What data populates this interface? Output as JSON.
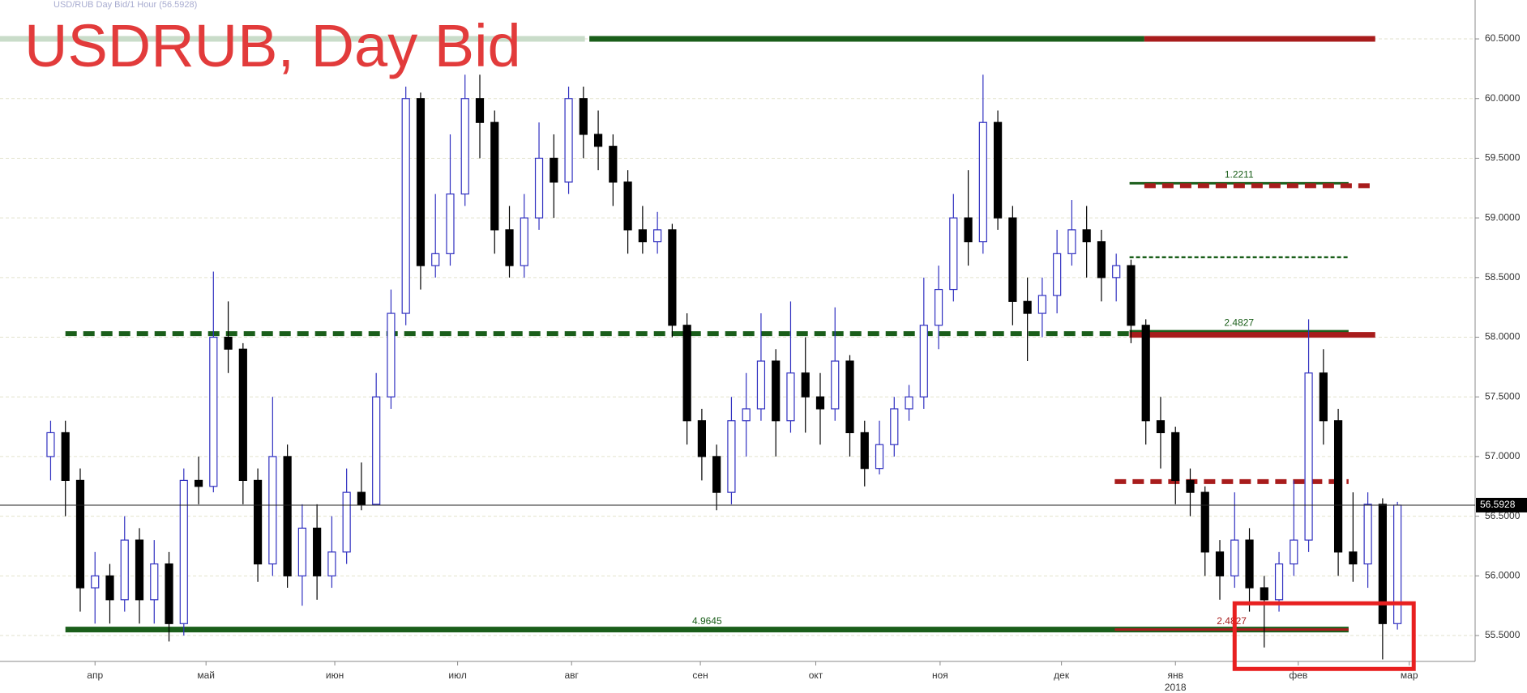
{
  "chart_data": {
    "type": "candlestick",
    "title": "USDRUB, Day Bid",
    "subtitle": "USD/RUB Day Bid/1 Hour (56.5928)",
    "up_color": "#3030c0",
    "down_color": "#000000",
    "xlim": [
      -3.42,
      96.25
    ],
    "ylim": [
      55.283,
      60.826
    ],
    "grid": true,
    "yticks": [
      {
        "value": 55.5,
        "label": "55.5000"
      },
      {
        "value": 56,
        "label": "56.0000"
      },
      {
        "value": 56.5,
        "label": "56.5000"
      },
      {
        "value": 57,
        "label": "57.0000"
      },
      {
        "value": 57.5,
        "label": "57.5000"
      },
      {
        "value": 58,
        "label": "58.0000"
      },
      {
        "value": 58.5,
        "label": "58.5000"
      },
      {
        "value": 59,
        "label": "59.0000"
      },
      {
        "value": 59.5,
        "label": "59.5000"
      },
      {
        "value": 60,
        "label": "60.0000"
      },
      {
        "value": 60.5,
        "label": "60.5000"
      }
    ],
    "xticks": [
      {
        "value": 3,
        "label": "апр"
      },
      {
        "value": 10.5,
        "label": "май"
      },
      {
        "value": 19.2,
        "label": "июн"
      },
      {
        "value": 27.5,
        "label": "июл"
      },
      {
        "value": 35.2,
        "label": "авг"
      },
      {
        "value": 43.9,
        "label": "сен"
      },
      {
        "value": 51.7,
        "label": "окт"
      },
      {
        "value": 60.1,
        "label": "ноя"
      },
      {
        "value": 68.3,
        "label": "дек"
      },
      {
        "value": 76,
        "label": "янв"
      },
      {
        "value": 84.3,
        "label": "фев"
      },
      {
        "value": 91.8,
        "label": "мар"
      }
    ],
    "year_label": "2018",
    "open": [
      57.0,
      57.2,
      56.8,
      55.9,
      56.0,
      55.8,
      56.3,
      55.8,
      56.1,
      55.6,
      56.8,
      56.75,
      58.0,
      57.9,
      56.8,
      56.1,
      57.0,
      56.0,
      56.4,
      56.0,
      56.2,
      56.7,
      56.6,
      57.5,
      58.2,
      60.0,
      58.6,
      58.7,
      59.2,
      60.0,
      59.8,
      58.9,
      58.6,
      59.0,
      59.5,
      59.3,
      60.0,
      59.7,
      59.6,
      59.3,
      58.9,
      58.8,
      58.9,
      58.1,
      57.3,
      57.0,
      56.7,
      57.3,
      57.4,
      57.8,
      57.3,
      57.7,
      57.5,
      57.4,
      57.8,
      57.2,
      56.9,
      57.1,
      57.4,
      57.5,
      58.1,
      58.4,
      59.0,
      58.8,
      59.8,
      59.0,
      58.3,
      58.2,
      58.35,
      58.7,
      58.9,
      58.8,
      58.5,
      58.6,
      58.1,
      57.3,
      57.2,
      56.8,
      56.7,
      56.2,
      56.0,
      56.3,
      55.9,
      55.8,
      56.1,
      56.3,
      57.7,
      57.3,
      56.2,
      56.1,
      56.6,
      55.6
    ],
    "high": [
      57.3,
      57.3,
      56.9,
      56.2,
      56.1,
      56.5,
      56.4,
      56.3,
      56.2,
      56.9,
      57.0,
      58.55,
      58.3,
      57.95,
      56.9,
      57.5,
      57.1,
      56.6,
      56.6,
      56.5,
      56.9,
      56.95,
      57.7,
      58.4,
      60.1,
      60.05,
      59.2,
      59.7,
      60.2,
      60.2,
      59.9,
      59.1,
      59.2,
      59.8,
      59.7,
      60.1,
      60.1,
      59.9,
      59.7,
      59.4,
      59.1,
      59.05,
      58.95,
      58.2,
      57.4,
      57.1,
      57.5,
      57.7,
      58.2,
      57.9,
      58.3,
      58.0,
      57.7,
      58.25,
      57.85,
      57.3,
      57.3,
      57.5,
      57.6,
      58.5,
      58.6,
      59.2,
      59.4,
      60.2,
      59.9,
      59.1,
      58.5,
      58.5,
      58.9,
      59.15,
      59.1,
      58.9,
      58.7,
      58.65,
      58.15,
      57.5,
      57.25,
      56.9,
      56.75,
      56.3,
      56.7,
      56.4,
      56.0,
      56.2,
      56.8,
      58.15,
      57.9,
      57.4,
      56.7,
      56.7,
      56.65,
      56.62
    ],
    "low": [
      56.8,
      56.5,
      55.7,
      55.6,
      55.6,
      55.7,
      55.6,
      55.6,
      55.45,
      55.5,
      56.6,
      56.7,
      57.7,
      56.6,
      55.95,
      56.0,
      55.9,
      55.75,
      55.8,
      55.9,
      56.1,
      56.55,
      56.6,
      57.4,
      58.1,
      58.4,
      58.5,
      58.6,
      59.1,
      59.5,
      58.7,
      58.5,
      58.5,
      58.9,
      59.0,
      59.2,
      59.5,
      59.4,
      59.1,
      58.7,
      58.7,
      58.7,
      58.0,
      57.1,
      56.8,
      56.55,
      56.6,
      57.0,
      57.3,
      57.0,
      57.2,
      57.2,
      57.1,
      57.3,
      57.0,
      56.75,
      56.85,
      57.0,
      57.3,
      57.4,
      57.9,
      58.3,
      58.6,
      58.7,
      58.9,
      58.1,
      57.8,
      58.0,
      58.2,
      58.6,
      58.5,
      58.3,
      58.3,
      57.95,
      57.1,
      56.9,
      56.6,
      56.5,
      56.0,
      55.8,
      55.9,
      55.7,
      55.4,
      55.7,
      56.0,
      56.2,
      57.1,
      56.0,
      55.95,
      55.9,
      55.3,
      55.55
    ],
    "close": [
      57.2,
      56.8,
      55.9,
      56.0,
      55.8,
      56.3,
      55.8,
      56.1,
      55.6,
      56.8,
      56.75,
      58.0,
      57.9,
      56.8,
      56.1,
      57.0,
      56.0,
      56.4,
      56.0,
      56.2,
      56.7,
      56.6,
      57.5,
      58.2,
      60.0,
      58.6,
      58.7,
      59.2,
      60.0,
      59.8,
      58.9,
      58.6,
      59.0,
      59.5,
      59.3,
      60.0,
      59.7,
      59.6,
      59.3,
      58.9,
      58.8,
      58.9,
      58.1,
      57.3,
      57.0,
      56.7,
      57.3,
      57.4,
      57.8,
      57.3,
      57.7,
      57.5,
      57.4,
      57.8,
      57.2,
      56.9,
      57.1,
      57.4,
      57.5,
      58.1,
      58.4,
      59.0,
      58.8,
      59.8,
      59.0,
      58.3,
      58.2,
      58.35,
      58.7,
      58.9,
      58.8,
      58.5,
      58.6,
      58.1,
      57.3,
      57.2,
      56.8,
      56.7,
      56.2,
      56.0,
      56.3,
      55.9,
      55.8,
      56.1,
      56.3,
      57.7,
      57.3,
      56.2,
      56.1,
      56.6,
      55.6,
      56.5928
    ],
    "levels": [
      {
        "value": 60.5,
        "from": -3.42,
        "to": 36.1,
        "color": "#c9dcc9",
        "style": "thick"
      },
      {
        "value": 60.5,
        "from": 36.4,
        "to": 73.9,
        "color": "#1a5e1a",
        "style": "thick"
      },
      {
        "value": 60.5,
        "from": 73.9,
        "to": 89.5,
        "color": "#a81c1c",
        "style": "thick"
      },
      {
        "value": 59.29,
        "from": 72.9,
        "to": 87.7,
        "color": "#1a5e1a",
        "style": "solid",
        "label": "1.2211"
      },
      {
        "value": 59.27,
        "from": 73.9,
        "to": 89.5,
        "color": "#a81c1c",
        "style": "dashed"
      },
      {
        "value": 58.67,
        "from": 72.9,
        "to": 87.7,
        "color": "#1a5e1a",
        "style": "thin-dashed"
      },
      {
        "value": 58.03,
        "from": 1.0,
        "to": 73.9,
        "color": "#1a5e1a",
        "style": "dashed"
      },
      {
        "value": 58.05,
        "from": 72.9,
        "to": 87.7,
        "color": "#1a5e1a",
        "style": "solid",
        "label": "2.4827"
      },
      {
        "value": 58.02,
        "from": 72.9,
        "to": 89.5,
        "color": "#a81c1c",
        "style": "thick"
      },
      {
        "value": 56.79,
        "from": 71.9,
        "to": 87.7,
        "color": "#a81c1c",
        "style": "dashed"
      },
      {
        "value": 55.55,
        "from": 1.0,
        "to": 87.7,
        "color": "#1a5e1a",
        "style": "thick",
        "label": "4.9645"
      },
      {
        "value": 55.55,
        "from": 71.9,
        "to": 87.7,
        "color": "#a81c1c",
        "style": "solid",
        "label": "2.4827"
      }
    ],
    "current_price": {
      "value": 56.5928,
      "label": "56.5928"
    },
    "highlight": {
      "xlim": [
        80.0,
        92.1
      ],
      "ylim": [
        55.22,
        55.77
      ],
      "color": "#e82020"
    }
  }
}
